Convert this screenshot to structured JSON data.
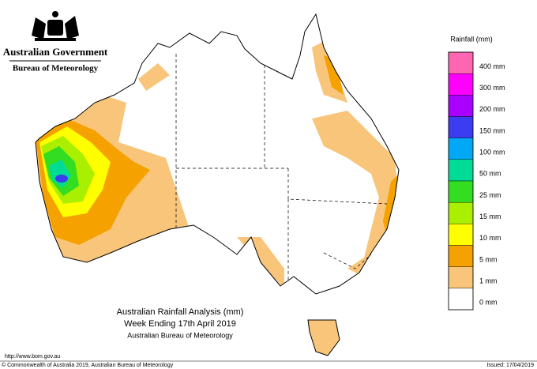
{
  "header": {
    "government": "Australian Government",
    "bureau": "Bureau of Meteorology"
  },
  "legend": {
    "title": "Rainfall (mm)",
    "items": [
      {
        "label": "400 mm",
        "color": "#ff66b2"
      },
      {
        "label": "300 mm",
        "color": "#ff00ff"
      },
      {
        "label": "200 mm",
        "color": "#aa00ff"
      },
      {
        "label": "150 mm",
        "color": "#3c3cf0"
      },
      {
        "label": "100 mm",
        "color": "#00a8f5"
      },
      {
        "label": "50 mm",
        "color": "#00dc96"
      },
      {
        "label": "25 mm",
        "color": "#33dd22"
      },
      {
        "label": "15 mm",
        "color": "#aaee00"
      },
      {
        "label": "10 mm",
        "color": "#ffff00"
      },
      {
        "label": "5 mm",
        "color": "#f5a200"
      },
      {
        "label": "1 mm",
        "color": "#f8c57a"
      },
      {
        "label": "0 mm",
        "color": "#ffffff"
      }
    ]
  },
  "title": {
    "lines": [
      "Australian Rainfall Analysis (mm)",
      "Week Ending 17th April 2019",
      "Australian Bureau of Meteorology"
    ]
  },
  "footer": {
    "url": "http://www.bom.gov.au",
    "copyright": "© Commonwealth of Australia 2019, Australian Bureau of Meteorology",
    "issued": "Issued: 17/04/2019"
  }
}
